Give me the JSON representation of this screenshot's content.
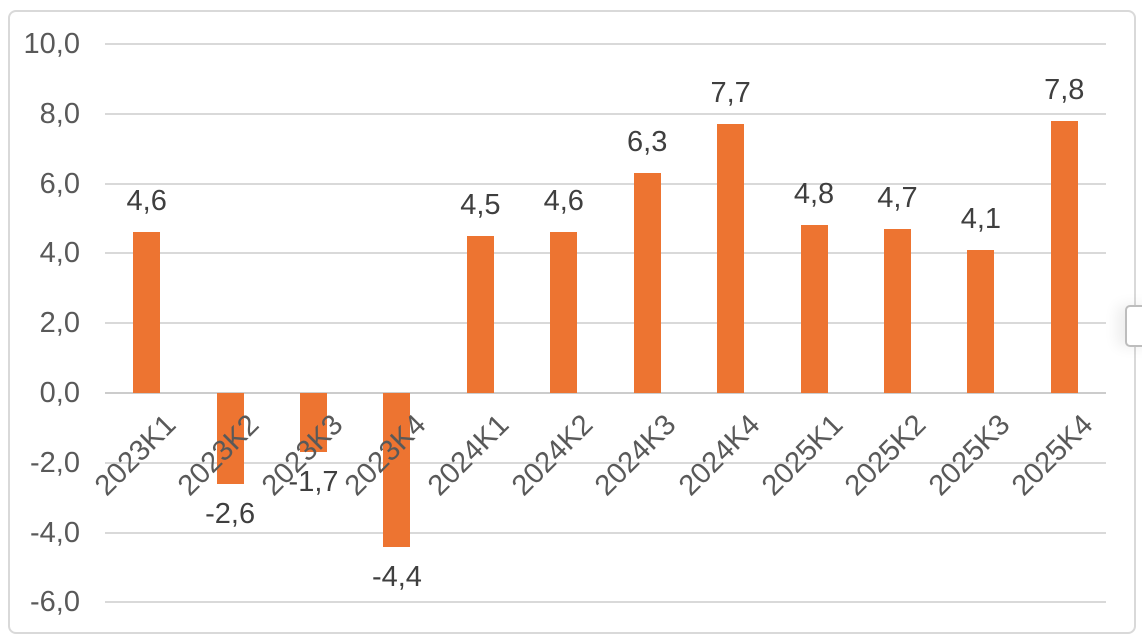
{
  "chart_data": {
    "type": "bar",
    "title": "",
    "xlabel": "",
    "ylabel": "",
    "categories": [
      "2023K1",
      "2023K2",
      "2023K3",
      "2023K4",
      "2024K1",
      "2024K2",
      "2024K3",
      "2024K4",
      "2025K1",
      "2025K2",
      "2025K3",
      "2025K4"
    ],
    "values": [
      4.6,
      -2.6,
      -1.7,
      -4.4,
      4.5,
      4.6,
      6.3,
      7.7,
      4.8,
      4.7,
      4.1,
      7.8
    ],
    "value_labels": [
      "4,6",
      "-2,6",
      "-1,7",
      "-4,4",
      "4,5",
      "4,6",
      "6,3",
      "7,7",
      "4,8",
      "4,7",
      "4,1",
      "7,8"
    ],
    "yticks": {
      "values": [
        10,
        8,
        6,
        4,
        2,
        0,
        -2,
        -4,
        -6
      ],
      "labels": [
        "10,0",
        "8,0",
        "6,0",
        "4,0",
        "2,0",
        "0,0",
        "-2,0",
        "-4,0",
        "-6,0"
      ]
    },
    "ylim": [
      -6,
      10
    ],
    "decimal_separator": ",",
    "grid": true,
    "legend": false,
    "x_tick_rotation_deg": -45,
    "series": [
      {
        "name": "",
        "values": [
          4.6,
          -2.6,
          -1.7,
          -4.4,
          4.5,
          4.6,
          6.3,
          7.7,
          4.8,
          4.7,
          4.1,
          7.8
        ]
      }
    ]
  },
  "colors": {
    "bar": "#ed7431",
    "gridline": "#d9d9d9",
    "zero_line": "#cccccc",
    "axis_text": "#595959",
    "data_label_text": "#3f3f3f",
    "frame_border": "#d9d9d9",
    "background": "#ffffff",
    "handle_border": "#bdbdbd",
    "handle_fill": "#ffffff"
  },
  "right_edge_handle": {
    "visible": true
  }
}
